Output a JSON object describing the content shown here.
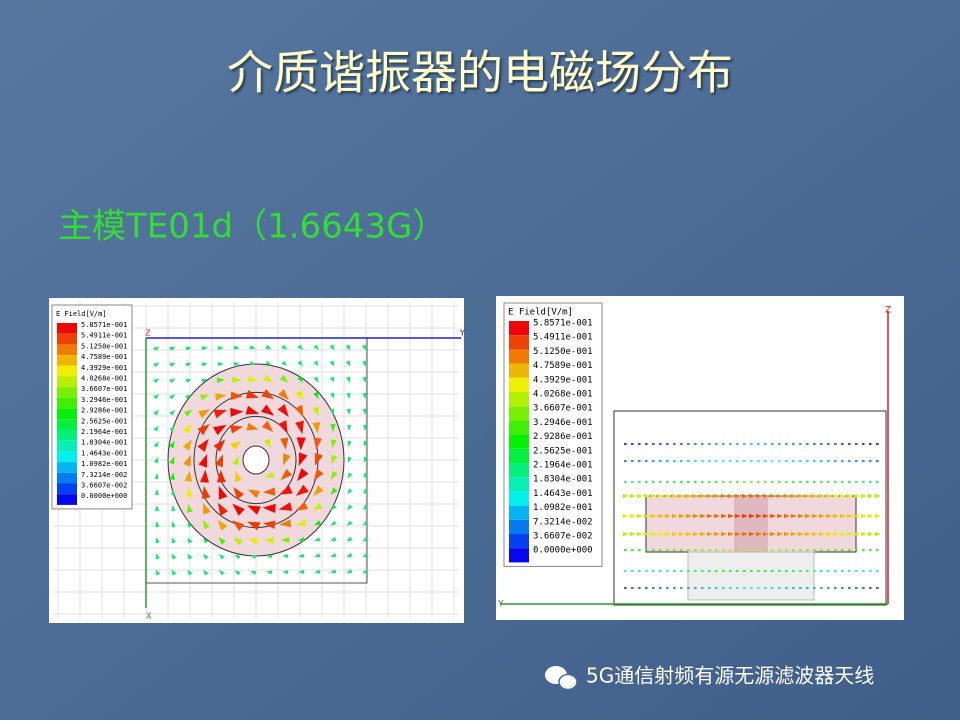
{
  "header": {
    "title": "介质谐振器的电磁场分布",
    "subtitle": "主模TE01d（1.6643G）"
  },
  "left_panel": {
    "legend_title": "E Field[V/m]",
    "legend": [
      "5.8571e-001",
      "5.4911e-001",
      "5.1250e-001",
      "4.7589e-001",
      "4.3929e-001",
      "4.0268e-001",
      "3.6607e-001",
      "3.2946e-001",
      "2.9286e-001",
      "2.5625e-001",
      "2.1964e-001",
      "1.8304e-001",
      "1.4643e-001",
      "1.0982e-001",
      "7.3214e-002",
      "3.6607e-002",
      "0.0000e+000"
    ],
    "axes": [
      "Z",
      "Y",
      "X"
    ]
  },
  "right_panel": {
    "legend_title": "E Field[V/m]",
    "legend": [
      "5.8571e-001",
      "5.4911e-001",
      "5.1250e-001",
      "4.7589e-001",
      "4.3929e-001",
      "4.0268e-001",
      "3.6607e-001",
      "3.2946e-001",
      "2.9286e-001",
      "2.5625e-001",
      "2.1964e-001",
      "1.8304e-001",
      "1.4643e-001",
      "1.0982e-001",
      "7.3214e-002",
      "3.6607e-002",
      "0.0000e+000"
    ],
    "axes": [
      "Z",
      "Y"
    ]
  },
  "footer": {
    "text": "5G通信射频有源无源滤波器天线"
  }
}
